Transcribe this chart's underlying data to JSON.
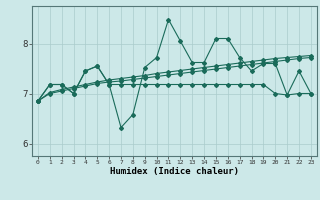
{
  "xlabel": "Humidex (Indice chaleur)",
  "bg_color": "#cce8e8",
  "line_color": "#1a6b5a",
  "grid_color": "#aacccc",
  "xlim": [
    -0.5,
    23.5
  ],
  "ylim": [
    5.75,
    8.75
  ],
  "yticks": [
    6,
    7,
    8
  ],
  "xticks": [
    0,
    1,
    2,
    3,
    4,
    5,
    6,
    7,
    8,
    9,
    10,
    11,
    12,
    13,
    14,
    15,
    16,
    17,
    18,
    19,
    20,
    21,
    22,
    23
  ],
  "series1": [
    6.85,
    7.18,
    7.18,
    7.0,
    7.45,
    7.55,
    7.18,
    6.32,
    6.58,
    7.52,
    7.72,
    8.48,
    8.05,
    7.62,
    7.62,
    8.1,
    8.1,
    7.72,
    7.45,
    7.6,
    7.6,
    6.97,
    7.45,
    7.0
  ],
  "series2": [
    6.85,
    7.18,
    7.18,
    7.0,
    7.45,
    7.55,
    7.18,
    7.18,
    7.18,
    7.18,
    7.18,
    7.18,
    7.18,
    7.18,
    7.18,
    7.18,
    7.18,
    7.18,
    7.18,
    7.18,
    7.0,
    6.97,
    7.0,
    7.0
  ],
  "series3": [
    6.85,
    7.02,
    7.08,
    7.13,
    7.18,
    7.23,
    7.27,
    7.3,
    7.33,
    7.36,
    7.4,
    7.43,
    7.46,
    7.49,
    7.52,
    7.55,
    7.58,
    7.61,
    7.64,
    7.67,
    7.7,
    7.72,
    7.74,
    7.76
  ],
  "series4": [
    6.85,
    7.0,
    7.05,
    7.1,
    7.15,
    7.2,
    7.23,
    7.25,
    7.28,
    7.31,
    7.34,
    7.37,
    7.4,
    7.43,
    7.46,
    7.49,
    7.52,
    7.55,
    7.58,
    7.61,
    7.64,
    7.67,
    7.7,
    7.72
  ]
}
